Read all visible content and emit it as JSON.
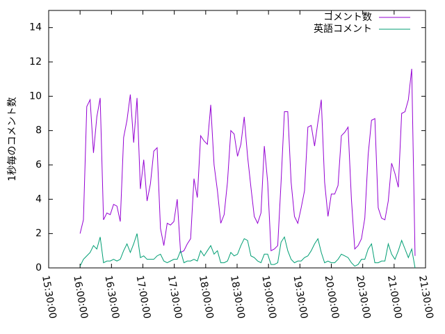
{
  "chart_data": {
    "type": "line",
    "y_label": "1秒毎のコメント数",
    "legend": "top-right",
    "xlim": [
      "15:30:00",
      "21:30:00"
    ],
    "xticks": [
      "15:30:00",
      "16:00:00",
      "16:30:00",
      "17:00:00",
      "17:30:00",
      "18:00:00",
      "18:30:00",
      "19:00:00",
      "19:30:00",
      "20:00:00",
      "20:30:00",
      "21:00:00",
      "21:30:00"
    ],
    "ylim": [
      0,
      15
    ],
    "yticks": [
      0,
      2,
      4,
      6,
      8,
      10,
      12,
      14
    ],
    "x": [
      "16:00:00",
      "16:03:12",
      "16:06:24",
      "16:09:36",
      "16:12:48",
      "16:16:00",
      "16:19:12",
      "16:22:24",
      "16:25:36",
      "16:28:48",
      "16:32:00",
      "16:35:12",
      "16:38:24",
      "16:41:36",
      "16:44:48",
      "16:48:00",
      "16:51:12",
      "16:54:24",
      "16:57:36",
      "17:00:48",
      "17:04:00",
      "17:07:12",
      "17:10:24",
      "17:13:36",
      "17:16:48",
      "17:20:00",
      "17:23:12",
      "17:26:24",
      "17:29:36",
      "17:32:48",
      "17:36:00",
      "17:39:12",
      "17:42:24",
      "17:45:36",
      "17:48:48",
      "17:52:00",
      "17:55:12",
      "17:58:24",
      "18:01:36",
      "18:04:48",
      "18:08:00",
      "18:11:12",
      "18:14:24",
      "18:17:36",
      "18:20:48",
      "18:24:00",
      "18:27:12",
      "18:30:24",
      "18:33:36",
      "18:36:48",
      "18:40:00",
      "18:43:12",
      "18:46:24",
      "18:49:36",
      "18:52:48",
      "18:56:00",
      "18:59:12",
      "19:02:24",
      "19:05:36",
      "19:08:48",
      "19:12:00",
      "19:15:12",
      "19:18:24",
      "19:21:36",
      "19:24:48",
      "19:28:00",
      "19:31:12",
      "19:34:24",
      "19:37:36",
      "19:40:48",
      "19:44:00",
      "19:47:12",
      "19:50:24",
      "19:53:36",
      "19:56:48",
      "20:00:00",
      "20:03:12",
      "20:06:24",
      "20:09:36",
      "20:12:48",
      "20:16:00",
      "20:19:12",
      "20:22:24",
      "20:25:36",
      "20:28:48",
      "20:32:00",
      "20:35:12",
      "20:38:24",
      "20:41:36",
      "20:44:48",
      "20:48:00",
      "20:51:12",
      "20:54:24",
      "20:57:36",
      "21:00:48",
      "21:04:00",
      "21:07:12",
      "21:10:24",
      "21:13:36",
      "21:16:48",
      "21:20:00"
    ],
    "series": [
      {
        "name": "コメント数",
        "color": "#9400d3",
        "values": [
          2.0,
          2.8,
          9.4,
          9.8,
          6.7,
          8.8,
          9.9,
          2.8,
          3.2,
          3.1,
          3.7,
          3.6,
          2.7,
          7.6,
          8.6,
          10.1,
          7.3,
          9.9,
          4.6,
          6.3,
          3.9,
          4.9,
          6.8,
          7.0,
          2.3,
          1.3,
          2.6,
          2.5,
          2.7,
          4.0,
          0.9,
          1.0,
          1.4,
          1.7,
          5.2,
          4.1,
          7.7,
          7.4,
          7.2,
          9.5,
          6.0,
          4.5,
          2.6,
          3.1,
          5.0,
          8.0,
          7.8,
          6.5,
          7.2,
          8.8,
          6.5,
          4.7,
          3.0,
          2.6,
          3.2,
          7.1,
          5.0,
          1.0,
          1.1,
          1.3,
          5.0,
          9.1,
          9.1,
          5.0,
          3.0,
          2.6,
          3.5,
          4.5,
          8.2,
          8.3,
          7.1,
          8.5,
          9.8,
          5.0,
          3.0,
          4.3,
          4.3,
          4.8,
          7.7,
          7.9,
          8.2,
          4.0,
          1.1,
          1.3,
          1.7,
          2.9,
          6.6,
          8.6,
          8.7,
          3.5,
          2.9,
          2.8,
          3.9,
          6.1,
          5.5,
          4.7,
          9.0,
          9.1,
          9.8,
          11.6,
          0.7
        ]
      },
      {
        "name": "英語コメント",
        "color": "#009e73",
        "values": [
          0.1,
          0.5,
          0.7,
          0.9,
          1.3,
          1.1,
          1.8,
          0.3,
          0.4,
          0.4,
          0.5,
          0.4,
          0.5,
          1.0,
          1.4,
          0.9,
          1.4,
          2.0,
          0.6,
          0.7,
          0.5,
          0.5,
          0.5,
          0.7,
          0.8,
          0.4,
          0.3,
          0.4,
          0.5,
          0.5,
          1.0,
          0.3,
          0.4,
          0.4,
          0.5,
          0.4,
          1.0,
          0.7,
          1.0,
          1.3,
          0.8,
          1.0,
          0.3,
          0.3,
          0.4,
          0.9,
          0.7,
          0.8,
          1.3,
          1.7,
          1.6,
          0.7,
          0.6,
          0.4,
          0.3,
          0.8,
          0.8,
          0.2,
          0.2,
          0.3,
          1.5,
          1.8,
          1.0,
          0.5,
          0.3,
          0.4,
          0.4,
          0.6,
          0.7,
          1.0,
          1.4,
          1.7,
          0.9,
          0.3,
          0.4,
          0.3,
          0.3,
          0.5,
          0.8,
          0.7,
          0.6,
          0.3,
          0.1,
          0.2,
          0.5,
          0.5,
          1.1,
          1.4,
          0.3,
          0.3,
          0.4,
          0.4,
          1.4,
          0.8,
          0.5,
          1.0,
          1.6,
          1.1,
          0.6,
          1.1,
          0.0
        ]
      }
    ]
  }
}
